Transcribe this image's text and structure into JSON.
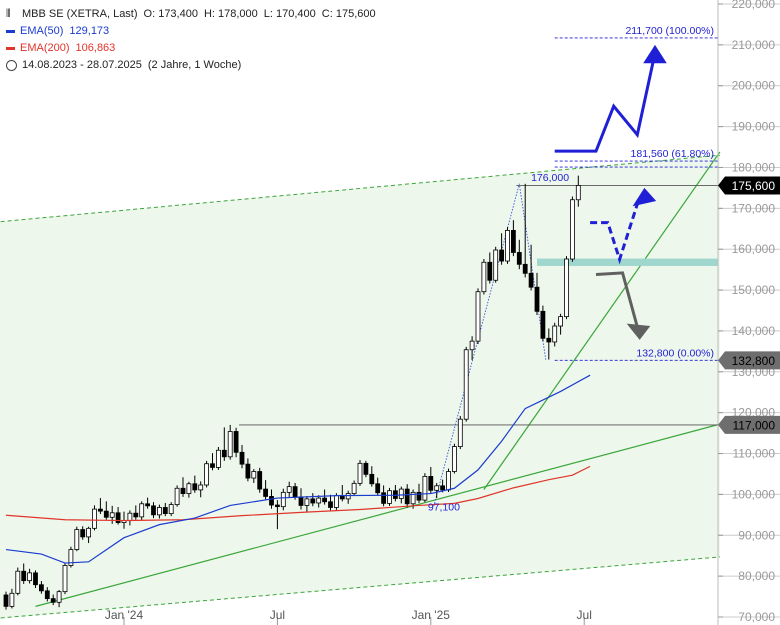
{
  "legend": {
    "instrument": "MBB SE (XETRA, Last)",
    "open": "O: 173,400",
    "high": "H: 178,000",
    "low": "L: 170,400",
    "close": "C: 175,600",
    "ema50_label": "EMA(50)",
    "ema50_value": "129,173",
    "ema200_label": "EMA(200)",
    "ema200_value": "106,863",
    "range": "14.08.2023 - 28.07.2025",
    "duration": "(2 Jahre, 1 Woche)"
  },
  "colors": {
    "ema50": "#1a3ccf",
    "ema200": "#e0352b",
    "channel": "#3aa63a",
    "projection": "#1f1fd6",
    "support_zone": "#9fd6cd",
    "down_arrow": "#606060"
  },
  "chart_data": {
    "type": "candlestick",
    "y_axis": {
      "min": 70000,
      "max": 220000,
      "position": "right",
      "ticks": [
        70000,
        80000,
        90000,
        100000,
        110000,
        120000,
        130000,
        140000,
        150000,
        160000,
        170000,
        180000,
        190000,
        200000,
        210000,
        220000
      ],
      "tick_labels": [
        "70,000",
        "80,000",
        "90,000",
        "100,000",
        "110,000",
        "120,000",
        "130,000",
        "140,000",
        "150,000",
        "160,000",
        "170,000",
        "180,000",
        "190,000",
        "200,000",
        "210,000",
        "220,000"
      ]
    },
    "x_axis": {
      "start": "2023-08-14",
      "end": "2025-07-28",
      "ticks": [
        {
          "label": "Jan '24",
          "week": 20
        },
        {
          "label": "Jul",
          "week": 46
        },
        {
          "label": "Jan '25",
          "week": 72
        },
        {
          "label": "Jul",
          "week": 98
        }
      ]
    },
    "candles": [
      [
        75400,
        76200,
        71800,
        72600
      ],
      [
        72600,
        76900,
        72100,
        75800
      ],
      [
        75800,
        82100,
        75300,
        81200
      ],
      [
        81200,
        83100,
        78100,
        78900
      ],
      [
        78900,
        81800,
        78200,
        80800
      ],
      [
        80800,
        81400,
        77100,
        77900
      ],
      [
        77900,
        78800,
        75700,
        76400
      ],
      [
        76400,
        77300,
        73800,
        74500
      ],
      [
        74500,
        75500,
        72900,
        73600
      ],
      [
        73600,
        76600,
        72400,
        76200
      ],
      [
        76200,
        83100,
        75600,
        82600
      ],
      [
        82600,
        87200,
        82100,
        86500
      ],
      [
        86500,
        92100,
        86100,
        91400
      ],
      [
        91400,
        92200,
        88900,
        89600
      ],
      [
        89600,
        92100,
        88100,
        91700
      ],
      [
        91700,
        97300,
        91200,
        96400
      ],
      [
        96400,
        99100,
        95200,
        95900
      ],
      [
        95900,
        98300,
        93800,
        94400
      ],
      [
        94400,
        97200,
        92800,
        95500
      ],
      [
        95500,
        96900,
        92600,
        93100
      ],
      [
        93100,
        95800,
        91600,
        93600
      ],
      [
        93600,
        96100,
        92400,
        95400
      ],
      [
        95400,
        97300,
        93800,
        94500
      ],
      [
        94500,
        98300,
        93600,
        97700
      ],
      [
        97700,
        99200,
        96500,
        97200
      ],
      [
        97200,
        98100,
        94200,
        95000
      ],
      [
        95000,
        97500,
        94100,
        96800
      ],
      [
        96800,
        97900,
        94700,
        95300
      ],
      [
        95300,
        98100,
        94700,
        97500
      ],
      [
        97500,
        102200,
        97000,
        101500
      ],
      [
        101500,
        104200,
        99400,
        100200
      ],
      [
        100200,
        103100,
        99200,
        102600
      ],
      [
        102600,
        104600,
        100400,
        101100
      ],
      [
        101100,
        103200,
        99300,
        102300
      ],
      [
        102300,
        108200,
        101700,
        107500
      ],
      [
        107500,
        110100,
        105900,
        106600
      ],
      [
        106600,
        111600,
        106000,
        110800
      ],
      [
        110800,
        116400,
        108200,
        109200
      ],
      [
        109200,
        117000,
        108500,
        115400
      ],
      [
        115400,
        116300,
        109100,
        110300
      ],
      [
        110300,
        112100,
        106400,
        107400
      ],
      [
        107400,
        108800,
        103200,
        104000
      ],
      [
        104000,
        106200,
        102800,
        105600
      ],
      [
        105600,
        106500,
        100400,
        101300
      ],
      [
        101300,
        103500,
        98700,
        99500
      ],
      [
        99500,
        101200,
        96500,
        97400
      ],
      [
        97400,
        98600,
        91500,
        97000
      ],
      [
        97000,
        101400,
        96100,
        100500
      ],
      [
        100500,
        103100,
        99200,
        101900
      ],
      [
        101900,
        102800,
        98700,
        99400
      ],
      [
        99400,
        101500,
        96300,
        97300
      ],
      [
        97300,
        99600,
        95800,
        98900
      ],
      [
        98900,
        100300,
        97100,
        97900
      ],
      [
        97900,
        99800,
        96800,
        99100
      ],
      [
        99100,
        101200,
        97500,
        98200
      ],
      [
        98200,
        99900,
        96100,
        96800
      ],
      [
        96800,
        100300,
        96200,
        99700
      ],
      [
        99700,
        102300,
        98300,
        98900
      ],
      [
        98900,
        100900,
        97700,
        100200
      ],
      [
        100200,
        103400,
        99600,
        102700
      ],
      [
        102700,
        108400,
        102100,
        107600
      ],
      [
        107600,
        108200,
        104200,
        104900
      ],
      [
        104900,
        106900,
        101900,
        102600
      ],
      [
        102600,
        104100,
        99700,
        100400
      ],
      [
        100400,
        102200,
        97100,
        97800
      ],
      [
        97800,
        101600,
        97200,
        100900
      ],
      [
        100900,
        102300,
        98300,
        99000
      ],
      [
        99000,
        101900,
        97800,
        101300
      ],
      [
        101300,
        102500,
        96800,
        97700
      ],
      [
        97700,
        101200,
        96500,
        100500
      ],
      [
        100500,
        102600,
        97900,
        98600
      ],
      [
        98600,
        105200,
        98100,
        104400
      ],
      [
        104400,
        106700,
        100200,
        101000
      ],
      [
        101000,
        102800,
        99100,
        102100
      ],
      [
        102100,
        103600,
        100500,
        101100
      ],
      [
        101100,
        106300,
        100600,
        105600
      ],
      [
        105600,
        112400,
        105100,
        111700
      ],
      [
        111700,
        119200,
        111100,
        118400
      ],
      [
        118400,
        136100,
        117800,
        135400
      ],
      [
        135400,
        138700,
        132900,
        137500
      ],
      [
        137500,
        150400,
        136800,
        149600
      ],
      [
        149600,
        157600,
        148900,
        156800
      ],
      [
        156800,
        159200,
        151600,
        152400
      ],
      [
        152400,
        160600,
        151800,
        159800
      ],
      [
        159800,
        163900,
        156200,
        157100
      ],
      [
        157100,
        165400,
        156400,
        164600
      ],
      [
        164600,
        167100,
        158300,
        159200
      ],
      [
        159200,
        162300,
        155100,
        156300
      ],
      [
        156300,
        176000,
        153100,
        154100
      ],
      [
        154100,
        161100,
        149900,
        150700
      ],
      [
        150700,
        154200,
        143900,
        144800
      ],
      [
        144800,
        146200,
        137500,
        138200
      ],
      [
        138200,
        140600,
        133000,
        137300
      ],
      [
        137300,
        142000,
        136200,
        141200
      ],
      [
        141200,
        144200,
        139100,
        143500
      ],
      [
        143500,
        158300,
        142900,
        157600
      ],
      [
        157600,
        172900,
        156900,
        172100
      ],
      [
        172100,
        178000,
        170400,
        175600
      ]
    ],
    "overlays": {
      "ema50": {
        "label": "EMA(50)",
        "last": 129173,
        "points": [
          [
            0,
            86500
          ],
          [
            6,
            85400
          ],
          [
            10,
            83200
          ],
          [
            14,
            83500
          ],
          [
            20,
            89400
          ],
          [
            26,
            92600
          ],
          [
            32,
            94200
          ],
          [
            38,
            97300
          ],
          [
            46,
            99100
          ],
          [
            56,
            99700
          ],
          [
            66,
            99800
          ],
          [
            72,
            100200
          ],
          [
            76,
            101500
          ],
          [
            80,
            106000
          ],
          [
            84,
            113000
          ],
          [
            88,
            121000
          ],
          [
            94,
            125200
          ],
          [
            99,
            129173
          ]
        ]
      },
      "ema200": {
        "label": "EMA(200)",
        "last": 106863,
        "points": [
          [
            0,
            94900
          ],
          [
            10,
            93800
          ],
          [
            20,
            93600
          ],
          [
            30,
            93800
          ],
          [
            40,
            94800
          ],
          [
            50,
            95600
          ],
          [
            60,
            96300
          ],
          [
            70,
            97300
          ],
          [
            76,
            97800
          ],
          [
            80,
            99000
          ],
          [
            86,
            101600
          ],
          [
            92,
            103600
          ],
          [
            96,
            104700
          ],
          [
            99,
            106863
          ]
        ]
      }
    },
    "annotations": {
      "swing_high": {
        "label": "176,000",
        "value": 176000
      },
      "swing_low": {
        "label": "97,100",
        "value": 97100
      },
      "fib_levels": [
        {
          "label": "211,700 (100.00%)",
          "value": 211700
        },
        {
          "label": "181,560 (61.80%)",
          "value": 181560
        },
        {
          "label": "132,800 (0.00%)",
          "value": 132800
        }
      ],
      "price_tags": [
        {
          "label": "175,600",
          "value": 175600
        },
        {
          "label": "132,800",
          "value": 132800
        },
        {
          "label": "117,000",
          "value": 117000
        }
      ],
      "horizontal_lines": [
        175600,
        117000
      ],
      "support_zone": [
        155900,
        157700
      ],
      "channel_upper": [
        [
          -8,
          165800
        ],
        [
          121,
          183000
        ]
      ],
      "channel_lower": [
        [
          -8,
          68900
        ],
        [
          121,
          84700
        ]
      ],
      "channel_mid": [
        [
          5,
          72600
        ],
        [
          121,
          117200
        ]
      ],
      "trend_line": [
        [
          81,
          101200
        ],
        [
          121,
          183800
        ]
      ]
    }
  }
}
